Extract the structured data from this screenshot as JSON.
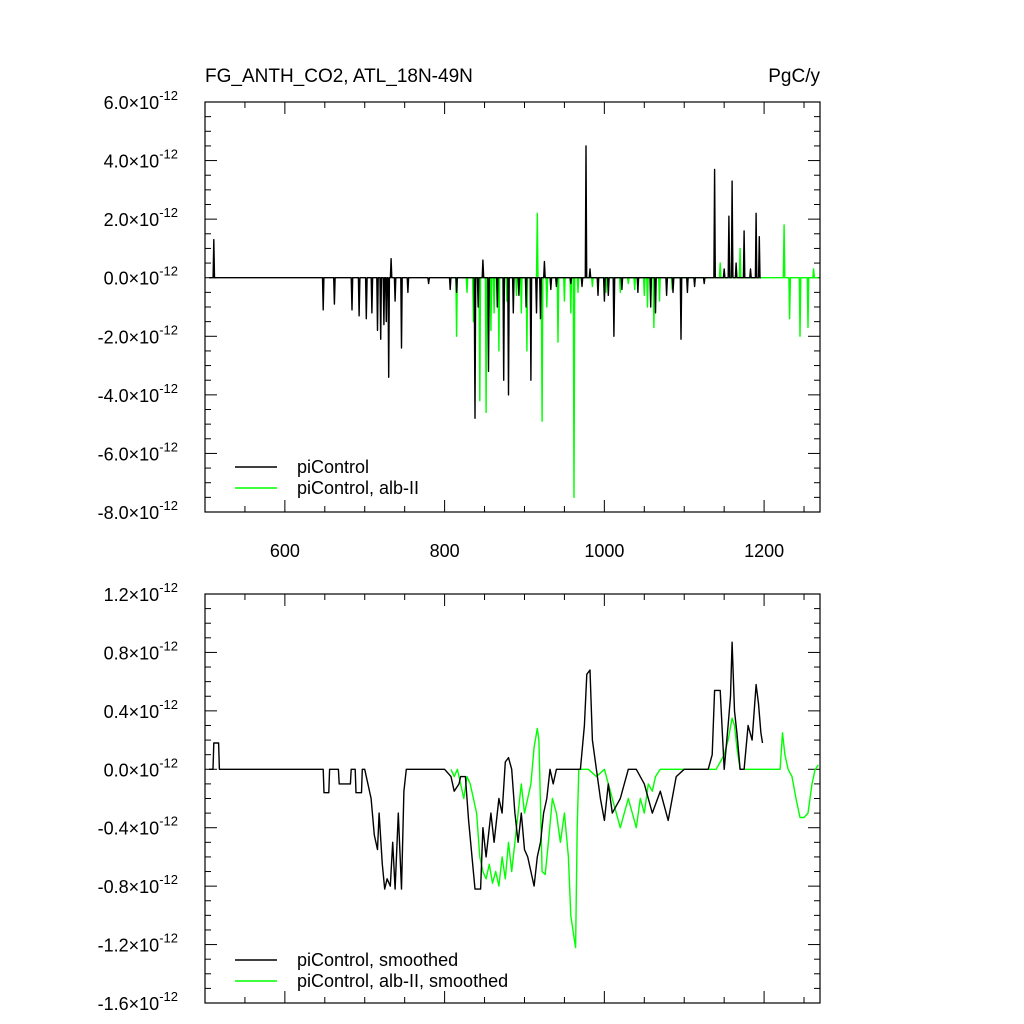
{
  "chart_data": [
    {
      "type": "line",
      "title": "FG_ANTH_CO2, ATL_18N-49N",
      "units": "PgC/y",
      "xlim": [
        500,
        1270
      ],
      "ylim": [
        -8e-12,
        6e-12
      ],
      "x_ticks": [
        600,
        800,
        1000,
        1200
      ],
      "x_tick_labels": [
        "600",
        "800",
        "1000",
        "1200"
      ],
      "y_ticks": [
        6e-12,
        4e-12,
        2e-12,
        0.0,
        -2e-12,
        -4e-12,
        -6e-12,
        -8e-12
      ],
      "y_tick_labels": [
        {
          "mantissa": "6.0",
          "exp": "-12"
        },
        {
          "mantissa": "4.0",
          "exp": "-12"
        },
        {
          "mantissa": "2.0",
          "exp": "-12"
        },
        {
          "mantissa": "0.0",
          "exp": "-12"
        },
        {
          "mantissa": "-2.0",
          "exp": "-12"
        },
        {
          "mantissa": "-4.0",
          "exp": "-12"
        },
        {
          "mantissa": "-6.0",
          "exp": "-12"
        },
        {
          "mantissa": "-8.0",
          "exp": "-12"
        }
      ],
      "legend_position": "bottom-left",
      "series": [
        {
          "name": "piControl",
          "color": "#000000",
          "spikes": [
            [
              511,
              1.3e-12
            ],
            [
              648,
              -1.1e-12
            ],
            [
              662,
              -9e-13
            ],
            [
              684,
              -1.1e-12
            ],
            [
              693,
              -1.3e-12
            ],
            [
              702,
              -1.4e-12
            ],
            [
              709,
              -1.2e-12
            ],
            [
              716,
              -1.8e-12
            ],
            [
              720,
              -2.1e-12
            ],
            [
              724,
              -1.6e-12
            ],
            [
              727,
              -1.5e-12
            ],
            [
              730,
              -3.4e-12
            ],
            [
              733,
              6.5e-13
            ],
            [
              738,
              -8e-13
            ],
            [
              746,
              -2.4e-12
            ],
            [
              754,
              -5e-13
            ],
            [
              780,
              -2e-13
            ],
            [
              807,
              -4e-13
            ],
            [
              815,
              -5e-13
            ],
            [
              838,
              -4.8e-12
            ],
            [
              842,
              -1e-12
            ],
            [
              848,
              6e-13
            ],
            [
              855,
              -3.2e-12
            ],
            [
              866,
              -1e-12
            ],
            [
              874,
              -3.5e-12
            ],
            [
              880,
              -4e-12
            ],
            [
              886,
              -1.2e-12
            ],
            [
              893,
              -6e-13
            ],
            [
              902,
              -1e-12
            ],
            [
              908,
              -3.5e-12
            ],
            [
              915,
              -1.2e-12
            ],
            [
              920,
              -1.4e-12
            ],
            [
              925,
              5.5e-13
            ],
            [
              933,
              -4e-13
            ],
            [
              940,
              -3e-13
            ],
            [
              958,
              -2e-13
            ],
            [
              972,
              -3e-13
            ],
            [
              977,
              4.5e-12
            ],
            [
              982,
              3e-13
            ],
            [
              992,
              -6e-13
            ],
            [
              1000,
              -8e-13
            ],
            [
              1005,
              -6e-13
            ],
            [
              1012,
              -2e-12
            ],
            [
              1022,
              -4e-13
            ],
            [
              1042,
              -5e-13
            ],
            [
              1058,
              -1e-12
            ],
            [
              1064,
              -1.2e-12
            ],
            [
              1078,
              -6e-13
            ],
            [
              1086,
              -5e-13
            ],
            [
              1096,
              -2.1e-12
            ],
            [
              1104,
              -5e-13
            ],
            [
              1113,
              -3e-13
            ],
            [
              1125,
              -2e-13
            ],
            [
              1138,
              3.7e-12
            ],
            [
              1150,
              3e-13
            ],
            [
              1156,
              2.1e-12
            ],
            [
              1160,
              3.3e-12
            ],
            [
              1165,
              5e-13
            ],
            [
              1175,
              1.6e-12
            ],
            [
              1183,
              3e-13
            ],
            [
              1190,
              2.2e-12
            ],
            [
              1194,
              1.4e-12
            ]
          ]
        },
        {
          "name": "piControl, alb-II",
          "color": "#00ff00",
          "spikes": [
            [
              815,
              -2e-12
            ],
            [
              828,
              -5e-13
            ],
            [
              836,
              -1.5e-12
            ],
            [
              844,
              -4.2e-12
            ],
            [
              852,
              -4.6e-12
            ],
            [
              858,
              -1.8e-12
            ],
            [
              862,
              -1.2e-12
            ],
            [
              868,
              -2.5e-12
            ],
            [
              878,
              -8e-13
            ],
            [
              890,
              -6e-13
            ],
            [
              896,
              -1.2e-12
            ],
            [
              903,
              -2.5e-12
            ],
            [
              916,
              2.2e-12
            ],
            [
              922,
              -4.9e-12
            ],
            [
              928,
              -1e-12
            ],
            [
              942,
              -2.2e-12
            ],
            [
              950,
              -8e-13
            ],
            [
              958,
              -1.2e-12
            ],
            [
              962,
              -7.5e-12
            ],
            [
              967,
              -5e-13
            ],
            [
              985,
              -3e-13
            ],
            [
              1002,
              -5e-13
            ],
            [
              1020,
              -5e-13
            ],
            [
              1030,
              -2e-13
            ],
            [
              1038,
              -4e-13
            ],
            [
              1050,
              -6e-13
            ],
            [
              1054,
              -1e-12
            ],
            [
              1062,
              -1.7e-12
            ],
            [
              1069,
              -8e-13
            ],
            [
              1085,
              -4e-13
            ],
            [
              1145,
              5e-13
            ],
            [
              1160,
              1.3e-12
            ],
            [
              1170,
              1e-12
            ],
            [
              1225,
              1.8e-12
            ],
            [
              1232,
              -1.4e-12
            ],
            [
              1245,
              -2e-12
            ],
            [
              1255,
              -1.7e-12
            ],
            [
              1262,
              3e-13
            ]
          ]
        }
      ]
    },
    {
      "type": "line",
      "title": "",
      "xlim": [
        500,
        1270
      ],
      "ylim": [
        -1.6e-12,
        1.2e-12
      ],
      "x_ticks": [
        600,
        800,
        1000,
        1200
      ],
      "y_ticks": [
        1.2e-12,
        8e-13,
        4e-13,
        0.0,
        -4e-13,
        -8e-13,
        -1.2e-12,
        -1.6e-12
      ],
      "y_tick_labels": [
        {
          "mantissa": "1.2",
          "exp": "-12"
        },
        {
          "mantissa": "0.8",
          "exp": "-12"
        },
        {
          "mantissa": "0.4",
          "exp": "-12"
        },
        {
          "mantissa": "0.0",
          "exp": "-12"
        },
        {
          "mantissa": "-0.4",
          "exp": "-12"
        },
        {
          "mantissa": "-0.8",
          "exp": "-12"
        },
        {
          "mantissa": "-1.2",
          "exp": "-12"
        },
        {
          "mantissa": "-1.6",
          "exp": "-12"
        }
      ],
      "legend_position": "bottom-left",
      "series": [
        {
          "name": "piControl, smoothed",
          "color": "#000000",
          "x": [
            505,
            510,
            511,
            517,
            518,
            640,
            641,
            648,
            649,
            655,
            656,
            667,
            668,
            682,
            683,
            688,
            689,
            696,
            697,
            700,
            704,
            708,
            712,
            716,
            718,
            722,
            725,
            728,
            732,
            735,
            738,
            742,
            746,
            749,
            752,
            760,
            800,
            808,
            812,
            818,
            820,
            826,
            830,
            838,
            845,
            848,
            852,
            858,
            862,
            868,
            872,
            876,
            880,
            884,
            888,
            892,
            896,
            900,
            904,
            908,
            912,
            916,
            920,
            924,
            928,
            932,
            936,
            940,
            950,
            960,
            970,
            975,
            978,
            982,
            985,
            990,
            995,
            1000,
            1005,
            1010,
            1015,
            1020,
            1030,
            1040,
            1050,
            1060,
            1070,
            1080,
            1090,
            1100,
            1110,
            1120,
            1125,
            1130,
            1135,
            1138,
            1145,
            1150,
            1155,
            1158,
            1160,
            1163,
            1166,
            1170,
            1175,
            1180,
            1185,
            1190,
            1193,
            1196,
            1198
          ],
          "y": [
            0.0,
            0.0,
            1.8e-13,
            1.8e-13,
            0.0,
            0.0,
            0.0,
            0.0,
            -1.6e-13,
            -1.6e-13,
            0.0,
            0.0,
            -1e-13,
            -1e-13,
            0.0,
            0.0,
            -1.6e-13,
            -1.6e-13,
            0.0,
            0.0,
            -1e-13,
            -2e-13,
            -4.5e-13,
            -5.5e-13,
            -3e-13,
            -6.5e-13,
            -8.2e-13,
            -7.5e-13,
            -8e-13,
            -5e-13,
            -8.2e-13,
            -3e-13,
            -8.2e-13,
            -1.5e-13,
            0.0,
            0.0,
            0.0,
            -5e-14,
            -1.5e-13,
            -1e-13,
            -5e-14,
            -5e-14,
            -3.5e-13,
            -8.2e-13,
            -8.2e-13,
            -4e-13,
            -6e-13,
            -3e-13,
            -5e-13,
            -2e-13,
            -3e-13,
            5e-14,
            8e-14,
            0.0,
            -3e-13,
            -5e-13,
            -3e-13,
            -5.5e-13,
            -6e-13,
            -7e-13,
            -8e-13,
            -6e-13,
            -5e-13,
            -3e-13,
            -2e-13,
            0.0,
            -1e-13,
            0.0,
            0.0,
            0.0,
            0.0,
            3e-13,
            6.5e-13,
            6.8e-13,
            2e-13,
            0.0,
            -2e-13,
            -3.5e-13,
            -1e-13,
            -3e-13,
            -2.5e-13,
            -2e-13,
            0.0,
            0.0,
            -1e-13,
            -3e-13,
            -1.5e-13,
            -3.5e-13,
            -5e-14,
            0.0,
            0.0,
            0.0,
            0.0,
            0.0,
            1e-13,
            5.4e-13,
            5.4e-13,
            0.0,
            3e-13,
            5e-13,
            8.7e-13,
            4e-13,
            2.5e-13,
            0.0,
            0.0,
            3e-13,
            2e-13,
            5.8e-13,
            4.5e-13,
            2.5e-13,
            1.8e-13
          ]
        },
        {
          "name": "piControl, alb-II, smoothed",
          "color": "#00ff00",
          "x": [
            808,
            812,
            816,
            820,
            824,
            828,
            832,
            840,
            844,
            848,
            852,
            856,
            860,
            864,
            868,
            872,
            876,
            880,
            884,
            890,
            896,
            900,
            904,
            908,
            912,
            916,
            918,
            922,
            926,
            930,
            935,
            940,
            945,
            950,
            955,
            958,
            962,
            964,
            966,
            968,
            972,
            980,
            990,
            1000,
            1010,
            1020,
            1030,
            1040,
            1045,
            1050,
            1055,
            1060,
            1064,
            1070,
            1080,
            1090,
            1100,
            1120,
            1140,
            1145,
            1150,
            1155,
            1160,
            1163,
            1166,
            1170,
            1180,
            1200,
            1220,
            1223,
            1226,
            1230,
            1235,
            1240,
            1245,
            1250,
            1255,
            1260,
            1264,
            1268
          ],
          "y": [
            0.0,
            -5e-14,
            0.0,
            -1e-13,
            -2e-13,
            -5e-14,
            -1e-13,
            -3e-13,
            -6e-13,
            -7e-13,
            -7.5e-13,
            -6.5e-13,
            -7.8e-13,
            -7e-13,
            -8e-13,
            -6e-13,
            -7.5e-13,
            -5e-13,
            -7e-13,
            -4e-13,
            -1e-13,
            -3e-13,
            -2e-13,
            -1e-13,
            1.5e-13,
            2.8e-13,
            2e-13,
            -7e-13,
            -7.2e-13,
            -5e-13,
            -2e-13,
            -3e-13,
            -5e-13,
            -3e-13,
            -6e-13,
            -1e-12,
            -1.15e-12,
            -1.22e-12,
            -4e-13,
            0.0,
            0.0,
            0.0,
            -5e-14,
            0.0,
            -2e-13,
            -4e-13,
            -2e-13,
            -4e-13,
            -2e-13,
            -3e-13,
            -1e-13,
            -1.5e-13,
            -5e-14,
            0.0,
            0.0,
            0.0,
            0.0,
            0.0,
            0.0,
            5e-14,
            1e-13,
            2e-13,
            3.5e-13,
            3e-13,
            1.5e-13,
            0.0,
            0.0,
            0.0,
            0.0,
            2.5e-13,
            1e-13,
            0.0,
            -5e-14,
            -2e-13,
            -3.3e-13,
            -3.3e-13,
            -3e-13,
            -1e-13,
            0.0,
            3e-14
          ]
        }
      ]
    }
  ]
}
